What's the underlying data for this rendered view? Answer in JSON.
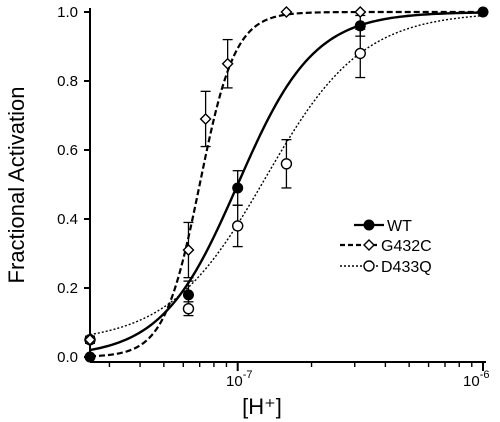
{
  "chart_data": {
    "type": "line",
    "x_scale": "log",
    "xlim": [
      2.5e-08,
      1e-06
    ],
    "ylim": [
      0,
      1.0
    ],
    "xlabel": "[H⁺]",
    "ylabel": "Fractional Activation",
    "x_tick_labels": [
      {
        "value": 1e-07,
        "base": "10",
        "exp": "-7"
      },
      {
        "value": 1e-06,
        "base": "10",
        "exp": "-6"
      }
    ],
    "y_ticks": [
      0.0,
      0.2,
      0.4,
      0.6,
      0.8,
      1.0
    ],
    "y_tick_labels": [
      "0.0",
      "0.2",
      "0.4",
      "0.6",
      "0.8",
      "1.0"
    ],
    "legend_position": "right",
    "series": [
      {
        "name": "WT",
        "marker": "filled-circle",
        "line": "solid",
        "points": [
          {
            "x": 2.5e-08,
            "y": 0.0,
            "err": 0.0
          },
          {
            "x": 6.3e-08,
            "y": 0.18,
            "err": 0.04
          },
          {
            "x": 1e-07,
            "y": 0.49,
            "err": 0.05
          },
          {
            "x": 3.16e-07,
            "y": 0.96,
            "err": 0.03
          },
          {
            "x": 1e-06,
            "y": 1.0,
            "err": 0.0
          }
        ],
        "curve": {
          "ec50": 1e-07,
          "hill": 2.8
        }
      },
      {
        "name": "G432C",
        "marker": "open-diamond",
        "line": "dashed",
        "points": [
          {
            "x": 2.5e-08,
            "y": 0.05,
            "err": 0.01
          },
          {
            "x": 6.3e-08,
            "y": 0.31,
            "err": 0.08
          },
          {
            "x": 7.4e-08,
            "y": 0.69,
            "err": 0.08
          },
          {
            "x": 9.1e-08,
            "y": 0.85,
            "err": 0.07
          },
          {
            "x": 1.58e-07,
            "y": 1.0,
            "err": 0.0
          },
          {
            "x": 3.16e-07,
            "y": 1.0,
            "err": 0.0
          }
        ],
        "curve": {
          "ec50": 7e-08,
          "hill": 6.0
        }
      },
      {
        "name": "D433Q",
        "marker": "open-circle",
        "line": "dotted",
        "points": [
          {
            "x": 2.5e-08,
            "y": 0.05,
            "err": 0.01
          },
          {
            "x": 6.3e-08,
            "y": 0.14,
            "err": 0.02
          },
          {
            "x": 1e-07,
            "y": 0.38,
            "err": 0.06
          },
          {
            "x": 1.58e-07,
            "y": 0.56,
            "err": 0.07
          },
          {
            "x": 3.16e-07,
            "y": 0.88,
            "err": 0.07
          }
        ],
        "curve": {
          "ec50": 1.3e-07,
          "hill": 2.2,
          "baseline": 0.04
        }
      }
    ]
  }
}
